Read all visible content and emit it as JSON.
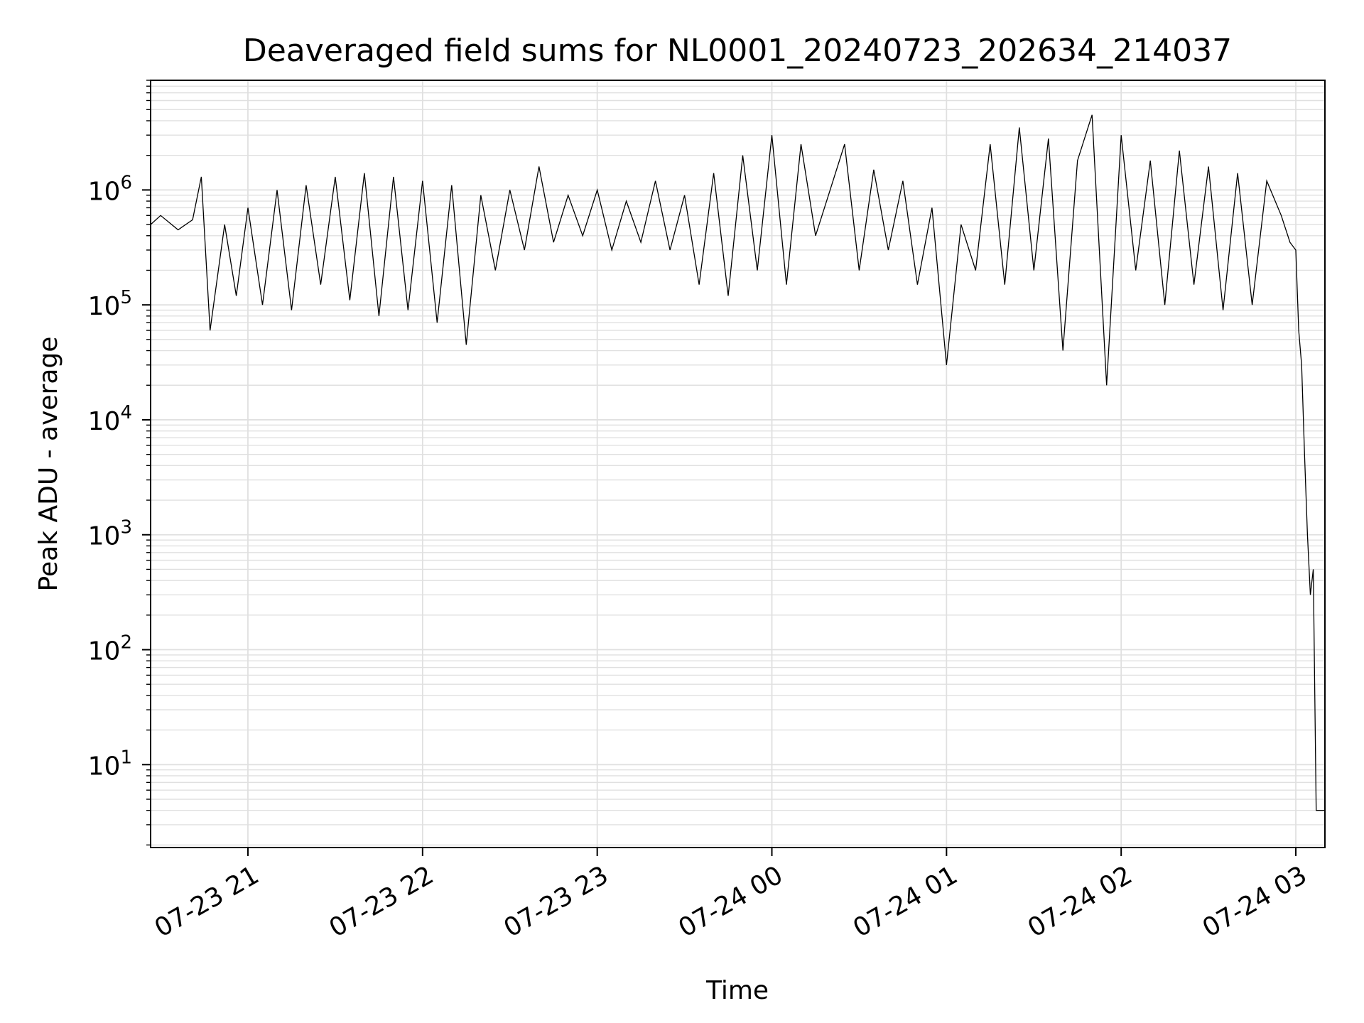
{
  "chart_data": {
    "type": "line",
    "title": "Deaveraged field sums for NL0001_20240723_202634_214037",
    "xlabel": "Time",
    "ylabel": "Peak ADU - average",
    "yscale": "log",
    "ylim": [
      1.9,
      9000000
    ],
    "xlim": [
      "2024-07-23T20:26:34",
      "2024-07-24T03:10:00"
    ],
    "grid": true,
    "grid_color": "#e0e0e0",
    "line_color": "#000000",
    "x_ticks": [
      {
        "time": "2024-07-23T21:00:00",
        "label": "07-23 21"
      },
      {
        "time": "2024-07-23T22:00:00",
        "label": "07-23 22"
      },
      {
        "time": "2024-07-23T23:00:00",
        "label": "07-23 23"
      },
      {
        "time": "2024-07-24T00:00:00",
        "label": "07-24 00"
      },
      {
        "time": "2024-07-24T01:00:00",
        "label": "07-24 01"
      },
      {
        "time": "2024-07-24T02:00:00",
        "label": "07-24 02"
      },
      {
        "time": "2024-07-24T03:00:00",
        "label": "07-24 03"
      }
    ],
    "y_ticks": [
      {
        "value": 10,
        "base": "10",
        "exp": "1"
      },
      {
        "value": 100,
        "base": "10",
        "exp": "2"
      },
      {
        "value": 1000,
        "base": "10",
        "exp": "3"
      },
      {
        "value": 10000,
        "base": "10",
        "exp": "4"
      },
      {
        "value": 100000,
        "base": "10",
        "exp": "5"
      },
      {
        "value": 1000000,
        "base": "10",
        "exp": "6"
      }
    ],
    "series": [
      {
        "x": [
          "2024-07-23T20:26:34",
          "2024-07-23T20:30:00",
          "2024-07-23T20:36:00",
          "2024-07-23T20:41:00",
          "2024-07-23T20:44:00",
          "2024-07-23T20:47:00",
          "2024-07-23T20:52:00",
          "2024-07-23T20:56:00",
          "2024-07-23T21:00:00",
          "2024-07-23T21:05:00",
          "2024-07-23T21:10:00",
          "2024-07-23T21:15:00",
          "2024-07-23T21:20:00",
          "2024-07-23T21:25:00",
          "2024-07-23T21:30:00",
          "2024-07-23T21:35:00",
          "2024-07-23T21:40:00",
          "2024-07-23T21:45:00",
          "2024-07-23T21:50:00",
          "2024-07-23T21:55:00",
          "2024-07-23T22:00:00",
          "2024-07-23T22:05:00",
          "2024-07-23T22:10:00",
          "2024-07-23T22:15:00",
          "2024-07-23T22:20:00",
          "2024-07-23T22:25:00",
          "2024-07-23T22:30:00",
          "2024-07-23T22:35:00",
          "2024-07-23T22:40:00",
          "2024-07-23T22:45:00",
          "2024-07-23T22:50:00",
          "2024-07-23T22:55:00",
          "2024-07-23T23:00:00",
          "2024-07-23T23:05:00",
          "2024-07-23T23:10:00",
          "2024-07-23T23:15:00",
          "2024-07-23T23:20:00",
          "2024-07-23T23:25:00",
          "2024-07-23T23:30:00",
          "2024-07-23T23:35:00",
          "2024-07-23T23:40:00",
          "2024-07-23T23:45:00",
          "2024-07-23T23:50:00",
          "2024-07-23T23:55:00",
          "2024-07-24T00:00:00",
          "2024-07-24T00:05:00",
          "2024-07-24T00:10:00",
          "2024-07-24T00:15:00",
          "2024-07-24T00:20:00",
          "2024-07-24T00:25:00",
          "2024-07-24T00:30:00",
          "2024-07-24T00:35:00",
          "2024-07-24T00:40:00",
          "2024-07-24T00:45:00",
          "2024-07-24T00:50:00",
          "2024-07-24T00:55:00",
          "2024-07-24T01:00:00",
          "2024-07-24T01:05:00",
          "2024-07-24T01:10:00",
          "2024-07-24T01:15:00",
          "2024-07-24T01:20:00",
          "2024-07-24T01:25:00",
          "2024-07-24T01:30:00",
          "2024-07-24T01:35:00",
          "2024-07-24T01:40:00",
          "2024-07-24T01:45:00",
          "2024-07-24T01:50:00",
          "2024-07-24T01:55:00",
          "2024-07-24T02:00:00",
          "2024-07-24T02:05:00",
          "2024-07-24T02:10:00",
          "2024-07-24T02:15:00",
          "2024-07-24T02:20:00",
          "2024-07-24T02:25:00",
          "2024-07-24T02:30:00",
          "2024-07-24T02:35:00",
          "2024-07-24T02:40:00",
          "2024-07-24T02:45:00",
          "2024-07-24T02:50:00",
          "2024-07-24T02:55:00",
          "2024-07-24T02:58:00",
          "2024-07-24T03:00:00",
          "2024-07-24T03:01:00",
          "2024-07-24T03:02:00",
          "2024-07-24T03:03:00",
          "2024-07-24T03:04:00",
          "2024-07-24T03:05:00",
          "2024-07-24T03:06:00",
          "2024-07-24T03:07:00",
          "2024-07-24T03:10:00"
        ],
        "y": [
          500000,
          600000,
          450000,
          550000,
          1300000,
          60000,
          500000,
          120000,
          700000,
          100000,
          1000000,
          90000,
          1100000,
          150000,
          1300000,
          110000,
          1400000,
          80000,
          1300000,
          90000,
          1200000,
          70000,
          1100000,
          45000,
          900000,
          200000,
          1000000,
          300000,
          1600000,
          350000,
          900000,
          400000,
          1000000,
          300000,
          800000,
          350000,
          1200000,
          300000,
          900000,
          150000,
          1400000,
          120000,
          2000000,
          200000,
          3000000,
          150000,
          2500000,
          400000,
          1000000,
          2500000,
          200000,
          1500000,
          300000,
          1200000,
          150000,
          700000,
          30000,
          500000,
          200000,
          2500000,
          150000,
          3500000,
          200000,
          2800000,
          40000,
          1800000,
          4500000,
          20000,
          3000000,
          200000,
          1800000,
          100000,
          2200000,
          150000,
          1600000,
          90000,
          1400000,
          100000,
          1200000,
          600000,
          350000,
          300000,
          60000,
          30000,
          5000,
          1000,
          300,
          500,
          4,
          4
        ]
      }
    ]
  }
}
